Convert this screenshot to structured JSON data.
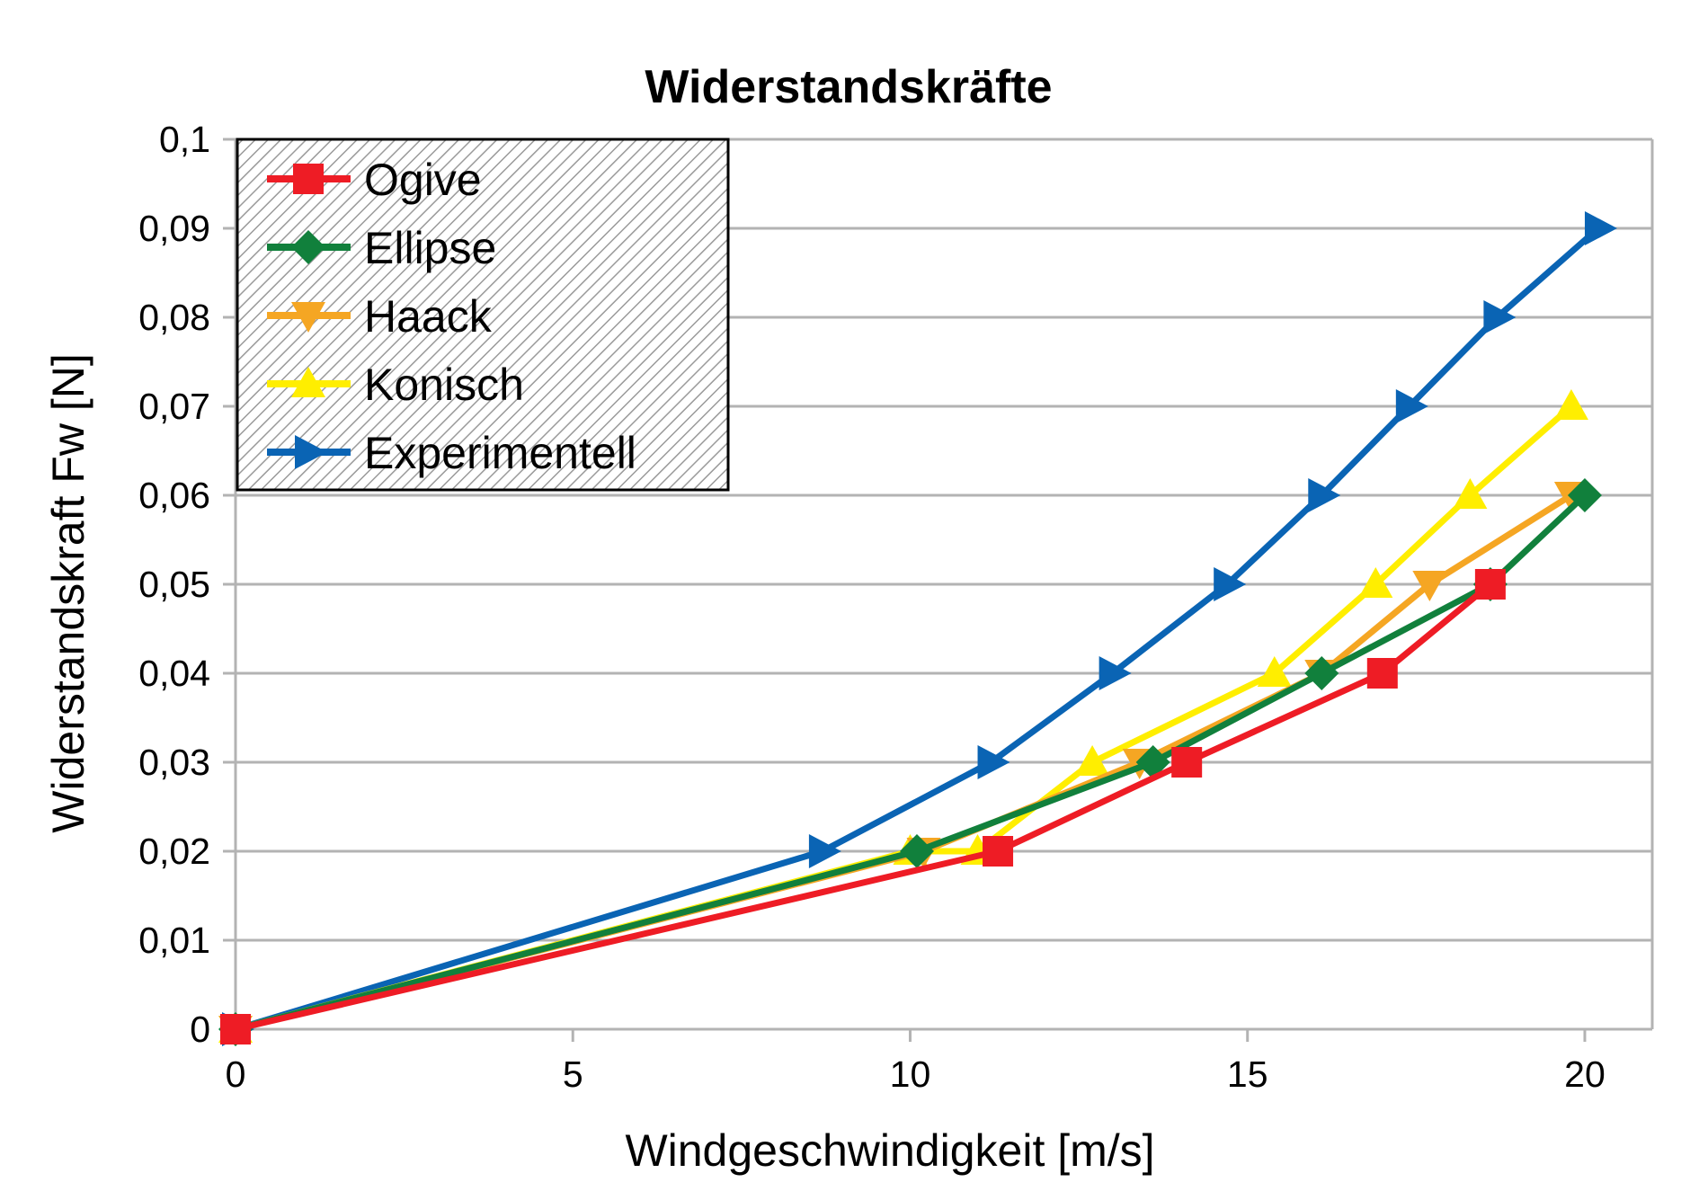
{
  "chart_data": {
    "type": "line",
    "title": "Widerstandskräfte",
    "xlabel": "Windgeschwindigkeit [m/s]",
    "ylabel": "Widerstandskraft Fw [N]",
    "xlim": [
      0,
      21
    ],
    "ylim": [
      0,
      0.1
    ],
    "x_ticks": [
      0,
      5,
      10,
      15,
      20
    ],
    "x_tick_labels": [
      "0",
      "5",
      "10",
      "15",
      "20"
    ],
    "y_ticks": [
      0,
      0.01,
      0.02,
      0.03,
      0.04,
      0.05,
      0.06,
      0.07,
      0.08,
      0.09,
      0.1
    ],
    "y_tick_labels": [
      "0",
      "0,01",
      "0,02",
      "0,03",
      "0,04",
      "0,05",
      "0,06",
      "0,07",
      "0,08",
      "0,09",
      "0,1"
    ],
    "grid": "horizontal",
    "legend_position": "top-left",
    "series": [
      {
        "name": "Experimentell",
        "color": "#0a64b4",
        "marker": "triangle-right",
        "x": [
          0,
          8.7,
          11.2,
          13.0,
          14.7,
          16.1,
          17.4,
          18.7,
          20.2
        ],
        "y": [
          0,
          0.02,
          0.03,
          0.04,
          0.05,
          0.06,
          0.07,
          0.08,
          0.09
        ]
      },
      {
        "name": "Konisch",
        "color": "#ffee00",
        "marker": "triangle-up",
        "x": [
          0,
          10.0,
          11.0,
          12.7,
          15.4,
          16.9,
          18.3,
          19.8
        ],
        "y": [
          0,
          0.02,
          0.02,
          0.03,
          0.04,
          0.05,
          0.06,
          0.07
        ]
      },
      {
        "name": "Haack",
        "color": "#f5a623",
        "marker": "triangle-down",
        "x": [
          0,
          10.2,
          13.4,
          16.1,
          17.7,
          19.8
        ],
        "y": [
          0,
          0.02,
          0.03,
          0.04,
          0.05,
          0.06
        ]
      },
      {
        "name": "Ellipse",
        "color": "#11803c",
        "marker": "diamond",
        "x": [
          0,
          10.1,
          13.6,
          16.1,
          18.6,
          20.0
        ],
        "y": [
          0,
          0.02,
          0.03,
          0.04,
          0.05,
          0.06
        ]
      },
      {
        "name": "Ogive",
        "color": "#ee1c25",
        "marker": "square",
        "x": [
          0,
          11.3,
          14.1,
          17.0,
          18.6
        ],
        "y": [
          0,
          0.02,
          0.03,
          0.04,
          0.05
        ]
      }
    ],
    "legend_order": [
      "Ogive",
      "Ellipse",
      "Haack",
      "Konisch",
      "Experimentell"
    ]
  }
}
